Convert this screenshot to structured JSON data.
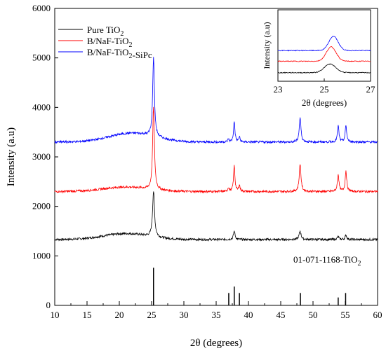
{
  "chart_data": {
    "type": "line",
    "xlabel": "2θ (degrees)",
    "ylabel": "Intensity (a.u)",
    "xlim": [
      10,
      60
    ],
    "ylim": [
      0,
      6000
    ],
    "xticks": [
      "10",
      "15",
      "20",
      "25",
      "30",
      "35",
      "40",
      "45",
      "50",
      "55",
      "60"
    ],
    "yticks": [
      "0",
      "1000",
      "2000",
      "3000",
      "4000",
      "5000",
      "6000"
    ],
    "legend": {
      "position": "top-left",
      "entries": [
        {
          "name": "Pure TiO2",
          "color": "#000000"
        },
        {
          "name": "B/NaF-TiO2",
          "color": "#ff0000"
        },
        {
          "name": "B/NaF-TiO2-SiPc",
          "color": "#0000ff"
        }
      ]
    },
    "series": [
      {
        "name": "Pure TiO2",
        "color": "#000000",
        "baseline": 1330,
        "hump": {
          "center": 21,
          "width": 5,
          "height": 120
        },
        "peaks": [
          {
            "x": 25.3,
            "height": 920,
            "width": 0.18
          },
          {
            "x": 37.8,
            "height": 170,
            "width": 0.15
          },
          {
            "x": 48.0,
            "height": 170,
            "width": 0.18
          },
          {
            "x": 53.9,
            "height": 60,
            "width": 0.15
          },
          {
            "x": 55.1,
            "height": 90,
            "width": 0.15
          }
        ]
      },
      {
        "name": "B/NaF-TiO2",
        "color": "#ff0000",
        "baseline": 2300,
        "hump": {
          "center": 21,
          "width": 5,
          "height": 90
        },
        "peaks": [
          {
            "x": 25.3,
            "height": 1680,
            "width": 0.16
          },
          {
            "x": 36.9,
            "height": 80,
            "width": 0.12
          },
          {
            "x": 37.8,
            "height": 520,
            "width": 0.13
          },
          {
            "x": 38.6,
            "height": 130,
            "width": 0.12
          },
          {
            "x": 48.0,
            "height": 560,
            "width": 0.16
          },
          {
            "x": 53.9,
            "height": 350,
            "width": 0.14
          },
          {
            "x": 55.1,
            "height": 420,
            "width": 0.14
          }
        ]
      },
      {
        "name": "B/NaF-TiO2-SiPc",
        "color": "#0000ff",
        "baseline": 3300,
        "hump": {
          "center": 22,
          "width": 5,
          "height": 180
        },
        "peaks": [
          {
            "x": 25.3,
            "height": 1600,
            "width": 0.16
          },
          {
            "x": 36.9,
            "height": 60,
            "width": 0.12
          },
          {
            "x": 37.8,
            "height": 410,
            "width": 0.13
          },
          {
            "x": 38.6,
            "height": 100,
            "width": 0.12
          },
          {
            "x": 48.0,
            "height": 490,
            "width": 0.16
          },
          {
            "x": 53.9,
            "height": 330,
            "width": 0.14
          },
          {
            "x": 55.1,
            "height": 330,
            "width": 0.14
          }
        ]
      }
    ],
    "reference": {
      "label": "01-071-1168-TiO2",
      "sticks": [
        {
          "x": 25.3,
          "value": 760
        },
        {
          "x": 36.95,
          "value": 250
        },
        {
          "x": 37.8,
          "value": 380
        },
        {
          "x": 38.6,
          "value": 250
        },
        {
          "x": 48.05,
          "value": 250
        },
        {
          "x": 53.9,
          "value": 160
        },
        {
          "x": 55.05,
          "value": 250
        }
      ]
    },
    "inset": {
      "xlabel": "2θ (degrees)",
      "ylabel": "Intensity (a.u)",
      "xlim": [
        23,
        27
      ],
      "xticks": [
        "23",
        "25",
        "27"
      ],
      "series": [
        {
          "name": "Pure TiO2",
          "color": "#000000",
          "baseline": 0.12,
          "peak": {
            "x": 25.25,
            "height": 0.12,
            "width": 0.35
          }
        },
        {
          "name": "B/NaF-TiO2",
          "color": "#ff0000",
          "baseline": 0.28,
          "peak": {
            "x": 25.3,
            "height": 0.2,
            "width": 0.3
          }
        },
        {
          "name": "B/NaF-TiO2-SiPc",
          "color": "#0000ff",
          "baseline": 0.43,
          "peak": {
            "x": 25.4,
            "height": 0.2,
            "width": 0.28
          }
        }
      ]
    }
  }
}
